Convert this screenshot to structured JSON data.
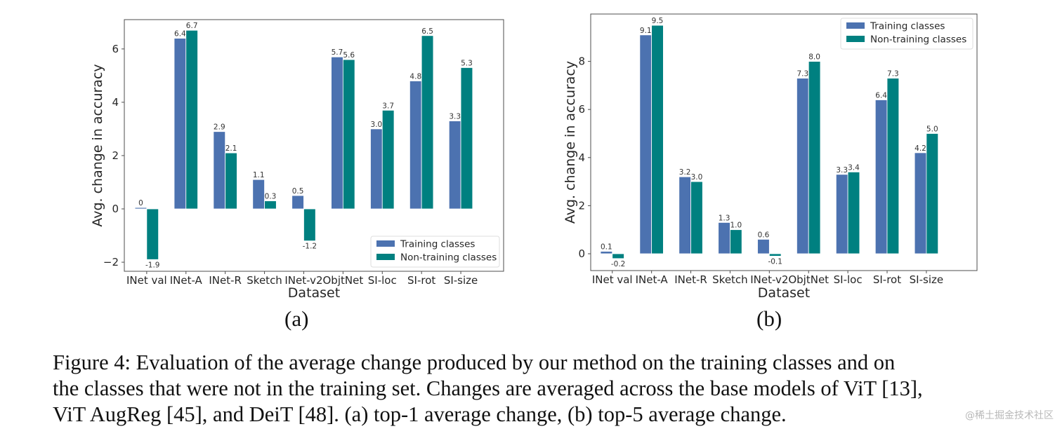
{
  "chart_data": [
    {
      "id": "a",
      "type": "bar",
      "title": "",
      "xlabel": "Dataset",
      "ylabel": "Avg. change in accuracy",
      "categories": [
        "INet val",
        "INet-A",
        "INet-R",
        "Sketch",
        "INet-v2",
        "ObjtNet",
        "SI-loc",
        "SI-rot",
        "SI-size"
      ],
      "series": [
        {
          "name": "Training classes",
          "color": "#4c72b0",
          "values": [
            0.05,
            6.4,
            2.9,
            1.1,
            0.5,
            5.7,
            3.0,
            4.8,
            3.3
          ],
          "labels": [
            "0",
            "6.4",
            "2.9",
            "1.1",
            "0.5",
            "5.7",
            "3.0",
            "4.8",
            "3.3"
          ]
        },
        {
          "name": "Non-training classes",
          "color": "#008080",
          "values": [
            -1.9,
            6.7,
            2.1,
            0.3,
            -1.2,
            5.6,
            3.7,
            6.5,
            5.3
          ],
          "labels": [
            "-1.9",
            "6.7",
            "2.1",
            "0.3",
            "-1.2",
            "5.6",
            "3.7",
            "6.5",
            "5.3"
          ]
        }
      ],
      "yticks": [
        -2,
        0,
        2,
        4,
        6
      ],
      "ytick_labels": [
        "−2",
        "0",
        "2",
        "4",
        "6"
      ],
      "ylim": [
        -2.34,
        7.1
      ],
      "xlim": [
        -0.57,
        9.09
      ],
      "grid": false,
      "legend_position": "lower-right",
      "subcaption": "(a)"
    },
    {
      "id": "b",
      "type": "bar",
      "title": "",
      "xlabel": "Dataset",
      "ylabel": "Avg. change in accuracy",
      "categories": [
        "INet val",
        "INet-A",
        "INet-R",
        "Sketch",
        "INet-v2",
        "ObjtNet",
        "SI-loc",
        "SI-rot",
        "SI-size"
      ],
      "series": [
        {
          "name": "Training classes",
          "color": "#4c72b0",
          "values": [
            0.1,
            9.1,
            3.2,
            1.3,
            0.6,
            7.3,
            3.3,
            6.4,
            4.2
          ],
          "labels": [
            "0.1",
            "9.1",
            "3.2",
            "1.3",
            "0.6",
            "7.3",
            "3.3",
            "6.4",
            "4.2"
          ]
        },
        {
          "name": "Non-training classes",
          "color": "#008080",
          "values": [
            -0.2,
            9.5,
            3.0,
            1.0,
            -0.1,
            8.0,
            3.4,
            7.3,
            5.0
          ],
          "labels": [
            "-0.2",
            "9.5",
            "3.0",
            "1.0",
            "-0.1",
            "8.0",
            "3.4",
            "7.3",
            "5.0"
          ]
        }
      ],
      "yticks": [
        0,
        2,
        4,
        6,
        8
      ],
      "ytick_labels": [
        "0",
        "2",
        "4",
        "6",
        "8"
      ],
      "ylim": [
        -0.7,
        9.97
      ],
      "xlim": [
        -0.55,
        9.29
      ],
      "grid": false,
      "legend_position": "top-right",
      "subcaption": "(b)"
    }
  ],
  "caption": {
    "line1": "Figure 4: Evaluation of the average change produced by our method on the training classes and on",
    "line2": "the classes that were not in the training set. Changes are averaged across the base models of ViT [13],",
    "line3": "ViT AugReg [45], and DeiT [48]. (a) top-1 average change, (b) top-5 average change."
  },
  "watermark": "@稀土掘金技术社区"
}
